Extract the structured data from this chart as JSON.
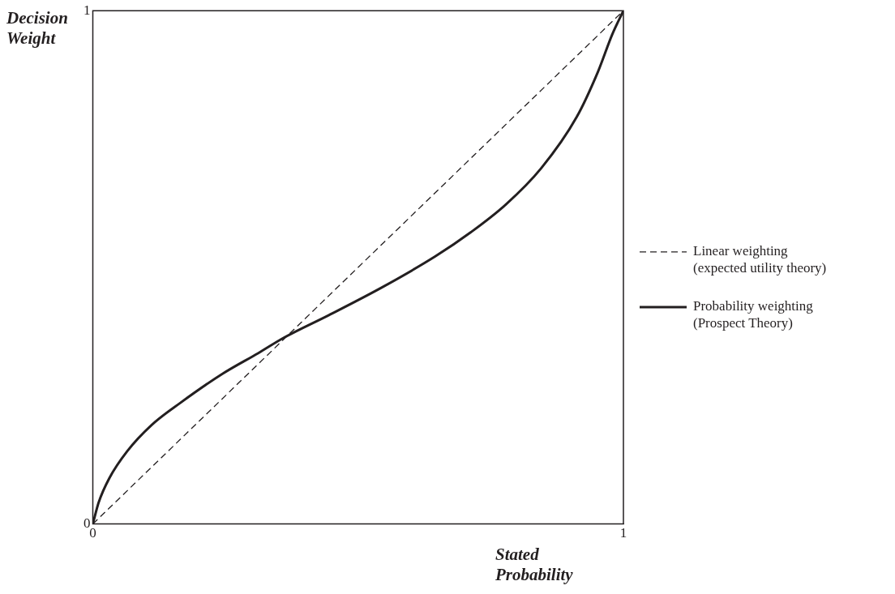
{
  "chart_data": {
    "type": "line",
    "xlabel": "Stated\nProbability",
    "ylabel": "Decision\nWeight",
    "xlim": [
      0,
      1
    ],
    "xticks": [
      0,
      1
    ],
    "ylim": [
      0,
      1
    ],
    "yticks": [
      0,
      1
    ],
    "grid": false,
    "legend": "right",
    "marker": "none",
    "series": [
      {
        "name": "Linear weighting\n(expected utility theory)",
        "color": "#231f20",
        "line_style": "dashed",
        "x": [
          0,
          1
        ],
        "values": [
          0,
          1
        ]
      },
      {
        "name": "Probability weighting\n(Prospect Theory)",
        "color": "#231f20",
        "line_style": "solid",
        "x": [
          0,
          0.011,
          0.031,
          0.065,
          0.111,
          0.165,
          0.245,
          0.312,
          0.362,
          0.445,
          0.545,
          0.645,
          0.712,
          0.778,
          0.845,
          0.912,
          0.952,
          0.979,
          1
        ],
        "values": [
          0,
          0.042,
          0.089,
          0.142,
          0.193,
          0.236,
          0.293,
          0.333,
          0.364,
          0.407,
          0.461,
          0.521,
          0.568,
          0.622,
          0.693,
          0.793,
          0.881,
          0.954,
          1
        ]
      }
    ]
  }
}
